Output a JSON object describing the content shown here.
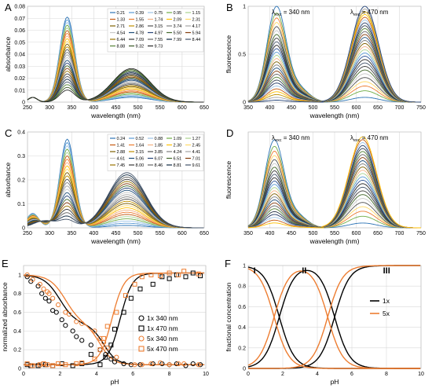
{
  "colors": {
    "spec": [
      "#2e75b6",
      "#5b9bd5",
      "#9dc3e6",
      "#70ad47",
      "#a9d18e",
      "#c55a11",
      "#ed7d31",
      "#f4b183",
      "#ffc000",
      "#ffd966",
      "#7f6000",
      "#bf9000",
      "#525252",
      "#7f7f7f",
      "#a5a5a5",
      "#c9c9c9",
      "#1f4e79",
      "#264478",
      "#43682b",
      "#843c0c",
      "#997300",
      "#3a3a3a",
      "#636363",
      "#0e2841",
      "#44546a",
      "#548235",
      "#375623",
      "#262626",
      "#333f50",
      "#4472c4",
      "#2f5597",
      "#203864"
    ],
    "black": "#000000",
    "orange": "#ed7d31",
    "grid": "#d9d9d9"
  },
  "panels": {
    "A": {
      "letter": "A",
      "xlabel": "wavelength (nm)",
      "ylabel": "absorbance",
      "xticks": [
        "250",
        "300",
        "350",
        "400",
        "450",
        "500",
        "550",
        "600",
        "650"
      ],
      "yticks": [
        "0",
        "0.01",
        "0.02",
        "0.03",
        "0.04",
        "0.05",
        "0.06",
        "0.07",
        "0.08"
      ],
      "legend": [
        "0.21",
        "0.39",
        "0.75",
        "0.95",
        "1.15",
        "1.33",
        "1.55",
        "1.74",
        "2.09",
        "2.31",
        "2.71",
        "2.86",
        "3.15",
        "3.74",
        "4.17",
        "4.54",
        "4.78",
        "4.97",
        "5.50",
        "5.94",
        "6.44",
        "7.09",
        "7.55",
        "7.99",
        "8.44",
        "8.88",
        "9.32",
        "9.73"
      ]
    },
    "B": {
      "letter": "B",
      "xlabel": "wavelength (nm)",
      "ylabel": "fluorescence",
      "xticks": [
        "350",
        "400",
        "450",
        "500",
        "550",
        "600",
        "650",
        "700",
        "750"
      ],
      "yticks": [
        "0",
        "0.5",
        "1"
      ],
      "exc1": "λexc = 340 nm",
      "exc2": "λexc = 470 nm"
    },
    "C": {
      "letter": "C",
      "xlabel": "wavelength (nm)",
      "ylabel": "absorbance",
      "xticks": [
        "250",
        "300",
        "350",
        "400",
        "450",
        "500",
        "550",
        "600",
        "650"
      ],
      "yticks": [
        "0",
        "0.1",
        "0.2",
        "0.3",
        "0.4"
      ],
      "legend": [
        "0.24",
        "0.52",
        "0.88",
        "1.09",
        "1.27",
        "1.41",
        "1.64",
        "1.85",
        "2.30",
        "2.45",
        "2.88",
        "3.15",
        "3.85",
        "4.24",
        "4.41",
        "4.61",
        "5.06",
        "6.07",
        "6.51",
        "7.01",
        "7.45",
        "8.00",
        "8.46",
        "8.81",
        "9.61"
      ]
    },
    "D": {
      "letter": "D",
      "xlabel": "wavelength (nm)",
      "ylabel": "fluorescence",
      "xticks": [
        "350",
        "400",
        "450",
        "500",
        "550",
        "600",
        "650",
        "700",
        "750"
      ],
      "yticks": [],
      "exc1": "λexc = 340 nm",
      "exc2": "λexc = 470 nm"
    },
    "E": {
      "letter": "E",
      "xlabel": "pH",
      "ylabel": "normalized absorbance",
      "xticks": [
        "0",
        "2",
        "4",
        "6",
        "8",
        "10"
      ],
      "yticks": [
        "0",
        "0.2",
        "0.4",
        "0.6",
        "0.8",
        "1"
      ],
      "legend": [
        "1x 340 nm",
        "1x 470 nm",
        "5x 340 nm",
        "5x 470 nm"
      ]
    },
    "F": {
      "letter": "F",
      "xlabel": "pH",
      "ylabel": "fractional concentration",
      "xticks": [
        "0",
        "2",
        "4",
        "6",
        "8",
        "10"
      ],
      "yticks": [
        "0",
        "0.2",
        "0.4",
        "0.6",
        "0.8",
        "1"
      ],
      "legend": [
        "1x",
        "5x"
      ],
      "species": [
        "I",
        "II",
        "III"
      ]
    }
  },
  "chart_data": [
    {
      "panel": "A",
      "type": "line",
      "xlabel": "wavelength (nm)",
      "ylabel": "absorbance",
      "xlim": [
        250,
        650
      ],
      "ylim": [
        0,
        0.08
      ],
      "series_names": [
        "0.21",
        "0.39",
        "0.75",
        "0.95",
        "1.15",
        "1.33",
        "1.55",
        "1.74",
        "2.09",
        "2.31",
        "2.71",
        "2.86",
        "3.15",
        "3.74",
        "4.17",
        "4.54",
        "4.78",
        "4.97",
        "5.50",
        "5.94",
        "6.44",
        "7.09",
        "7.55",
        "7.99",
        "8.44",
        "8.88",
        "9.32",
        "9.73"
      ],
      "band1": {
        "center": 340,
        "peak_range": [
          0.01,
          0.071
        ]
      },
      "band2": {
        "center": 485,
        "peak_range": [
          0.004,
          0.028
        ]
      }
    },
    {
      "panel": "B",
      "type": "line",
      "xlabel": "wavelength (nm)",
      "ylabel": "fluorescence",
      "xlim": [
        350,
        750
      ],
      "ylim": [
        0,
        1
      ],
      "band1": {
        "center": 415,
        "peak_range": [
          0.02,
          0.98
        ]
      },
      "band2": {
        "center": 620,
        "peak_range": [
          0.05,
          1.0
        ]
      }
    },
    {
      "panel": "C",
      "type": "line",
      "xlabel": "wavelength (nm)",
      "ylabel": "absorbance",
      "xlim": [
        250,
        650
      ],
      "ylim": [
        0,
        0.4
      ],
      "series_names": [
        "0.24",
        "0.52",
        "0.88",
        "1.09",
        "1.27",
        "1.41",
        "1.64",
        "1.85",
        "2.30",
        "2.45",
        "2.88",
        "3.15",
        "3.85",
        "4.24",
        "4.41",
        "4.61",
        "5.06",
        "6.07",
        "6.51",
        "7.01",
        "7.45",
        "8.00",
        "8.46",
        "8.81",
        "9.61"
      ],
      "band1": {
        "center": 340,
        "peak_range": [
          0.03,
          0.37
        ]
      },
      "band2": {
        "center": 475,
        "peak_range": [
          0.01,
          0.23
        ]
      }
    },
    {
      "panel": "D",
      "type": "line",
      "xlabel": "wavelength (nm)",
      "ylabel": "fluorescence",
      "xlim": [
        350,
        750
      ],
      "band1": {
        "center": 410,
        "peak_range": [
          0.05,
          0.9
        ]
      },
      "band2": {
        "center": 615,
        "peak_range": [
          0.05,
          0.95
        ]
      }
    },
    {
      "panel": "E",
      "type": "scatter",
      "xlabel": "pH",
      "ylabel": "normalized absorbance",
      "xlim": [
        0,
        10
      ],
      "ylim": [
        0,
        1.1
      ],
      "series": [
        {
          "name": "1x 340 nm",
          "marker": "circle",
          "color": "#000000",
          "x": [
            0.2,
            0.4,
            0.8,
            1.0,
            1.2,
            1.4,
            1.6,
            1.8,
            2.1,
            2.3,
            2.7,
            2.9,
            3.2,
            3.7,
            4.2,
            4.5,
            4.8,
            5.0,
            5.5,
            5.9,
            6.4,
            7.1,
            7.6,
            8.0,
            8.4,
            8.9,
            9.3,
            9.7
          ],
          "y": [
            0.98,
            0.93,
            0.88,
            0.8,
            0.75,
            0.72,
            0.62,
            0.6,
            0.52,
            0.46,
            0.4,
            0.34,
            0.3,
            0.25,
            0.2,
            0.15,
            0.1,
            0.07,
            0.05,
            0.04,
            0.04,
            0.05,
            0.05,
            0.04,
            0.05,
            0.03,
            0.05,
            0.04
          ]
        },
        {
          "name": "1x 470 nm",
          "marker": "square",
          "color": "#000000",
          "x": [
            0.2,
            0.4,
            0.8,
            1.2,
            1.6,
            2.1,
            2.7,
            3.2,
            3.7,
            4.2,
            4.5,
            4.8,
            5.0,
            5.5,
            5.9,
            6.4,
            7.1,
            7.6,
            8.0,
            8.4,
            8.9,
            9.3,
            9.7
          ],
          "y": [
            0.04,
            0.03,
            0.03,
            0.04,
            0.03,
            0.05,
            0.03,
            0.05,
            0.15,
            0.04,
            0.12,
            0.25,
            0.42,
            0.6,
            0.75,
            0.85,
            0.9,
            0.98,
            0.96,
            1.0,
            0.98,
            1.02,
            0.99
          ]
        },
        {
          "name": "5x 340 nm",
          "marker": "circle",
          "color": "#ed7d31",
          "x": [
            0.2,
            0.5,
            0.9,
            1.1,
            1.3,
            1.4,
            1.6,
            1.9,
            2.3,
            2.5,
            2.9,
            3.2,
            3.9,
            4.2,
            4.4,
            4.6,
            5.1,
            6.1,
            6.5,
            7.0,
            7.5,
            8.0,
            8.5,
            8.8,
            9.6
          ],
          "y": [
            1.0,
            0.95,
            0.9,
            0.85,
            0.82,
            0.8,
            0.75,
            0.68,
            0.6,
            0.58,
            0.5,
            0.48,
            0.4,
            0.32,
            0.28,
            0.22,
            0.12,
            0.04,
            0.04,
            0.05,
            0.06,
            0.04,
            0.05,
            0.05,
            0.04
          ]
        },
        {
          "name": "5x 470 nm",
          "marker": "square",
          "color": "#ed7d31",
          "x": [
            0.2,
            0.5,
            0.9,
            1.1,
            1.3,
            1.6,
            1.9,
            2.3,
            2.9,
            3.2,
            3.9,
            4.2,
            4.4,
            4.6,
            5.1,
            5.6,
            6.1,
            6.5,
            7.0,
            7.5,
            8.0,
            8.5,
            8.8,
            9.6
          ],
          "y": [
            0.05,
            0.03,
            0.04,
            0.05,
            0.04,
            0.03,
            0.05,
            0.04,
            0.05,
            0.06,
            0.1,
            0.2,
            0.32,
            0.45,
            0.6,
            0.78,
            0.9,
            0.98,
            1.0,
            0.99,
            1.02,
            1.0,
            1.04,
            1.01
          ]
        }
      ],
      "fits": [
        {
          "name": "1x 340 nm fit",
          "color": "#000000",
          "pKa1": 2.0,
          "pKa2": 4.4
        },
        {
          "name": "1x 470 nm fit",
          "color": "#000000",
          "pKa": 5.3
        },
        {
          "name": "5x 340 nm fit",
          "color": "#ed7d31",
          "pKa1": 2.3,
          "pKa2": 4.2
        },
        {
          "name": "5x 470 nm fit",
          "color": "#ed7d31",
          "pKa": 4.85
        }
      ]
    },
    {
      "panel": "F",
      "type": "line",
      "xlabel": "pH",
      "ylabel": "fractional concentration",
      "xlim": [
        0,
        10
      ],
      "ylim": [
        0,
        1
      ],
      "series": [
        {
          "name": "1x",
          "color": "#000000",
          "pKa1": 1.8,
          "pKa2": 5.0
        },
        {
          "name": "5x",
          "color": "#ed7d31",
          "pKa1": 1.5,
          "pKa2": 4.6
        }
      ],
      "species_labels": [
        "I",
        "II",
        "III"
      ]
    }
  ]
}
